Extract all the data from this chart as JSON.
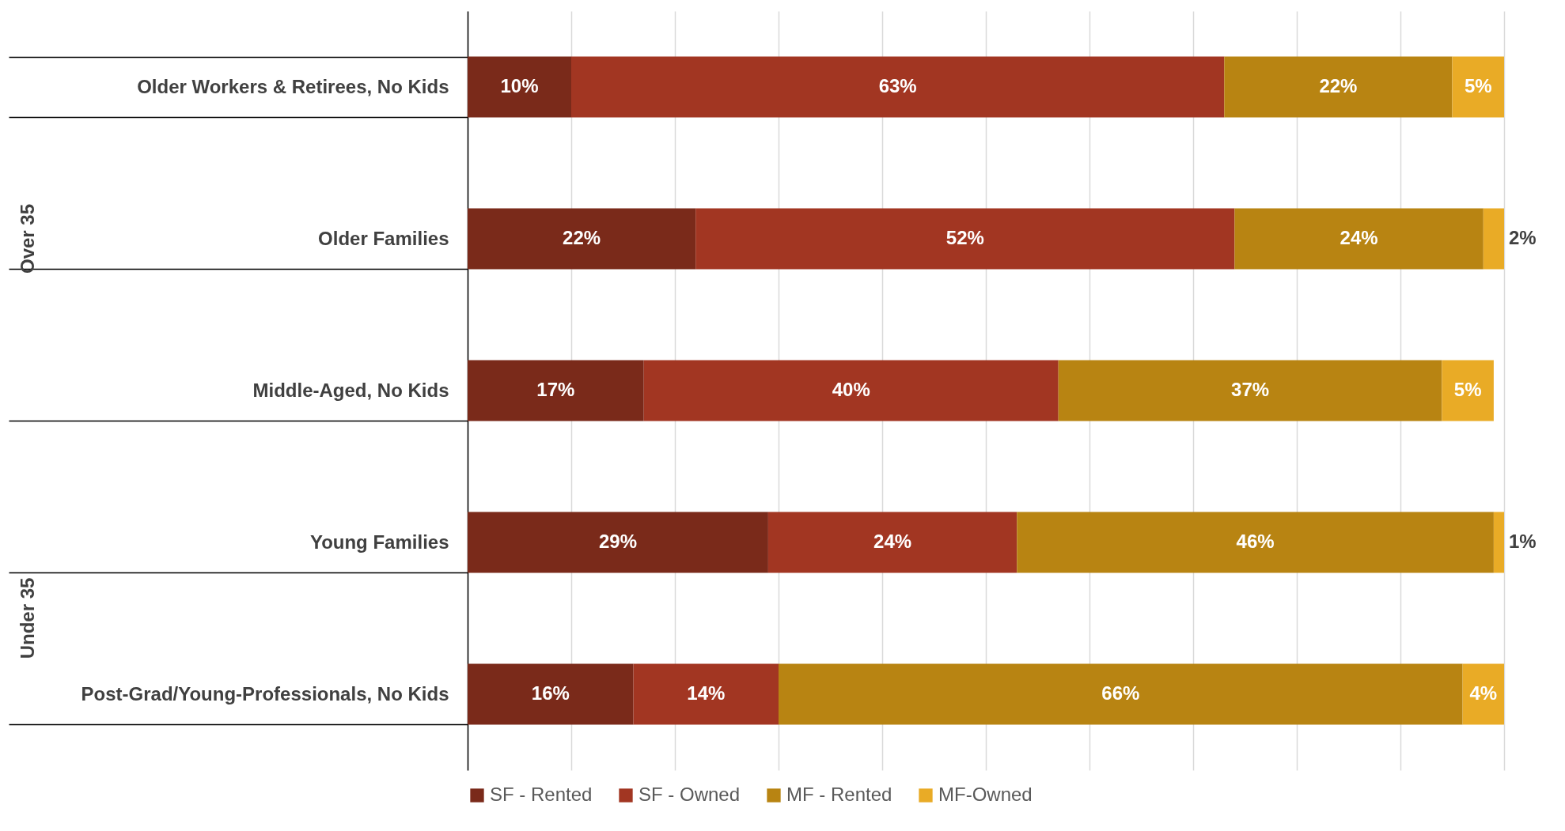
{
  "chart_data": {
    "type": "bar",
    "orientation": "horizontal",
    "stacked": true,
    "categories": [
      "Older Workers & Retirees, No Kids",
      "Older Families",
      "Middle-Aged, No Kids",
      "Young Families",
      "Post-Grad/Young-Professionals, No Kids"
    ],
    "series": [
      {
        "name": "SF - Rented",
        "color": "#7a2a1a",
        "values": [
          10,
          22,
          17,
          29,
          16
        ],
        "value_labels": [
          "10%",
          "22%",
          "17%",
          "29%",
          "16%"
        ]
      },
      {
        "name": "SF - Owned",
        "color": "#a23622",
        "values": [
          63,
          52,
          40,
          24,
          14
        ],
        "value_labels": [
          "63%",
          "52%",
          "40%",
          "24%",
          "14%"
        ]
      },
      {
        "name": "MF - Rented",
        "color": "#b88412",
        "values": [
          22,
          24,
          37,
          46,
          66
        ],
        "value_labels": [
          "22%",
          "24%",
          "37%",
          "46%",
          "66%"
        ]
      },
      {
        "name": "MF-Owned",
        "color": "#e9ab26",
        "values": [
          5,
          2,
          5,
          1,
          4
        ],
        "value_labels": [
          "5%",
          "2%",
          "5%",
          "1%",
          "4%"
        ]
      }
    ],
    "grid": "x",
    "tick_labels": "y",
    "legend": "bottom",
    "annotations": [
      "Over 35",
      "Under 35"
    ]
  }
}
